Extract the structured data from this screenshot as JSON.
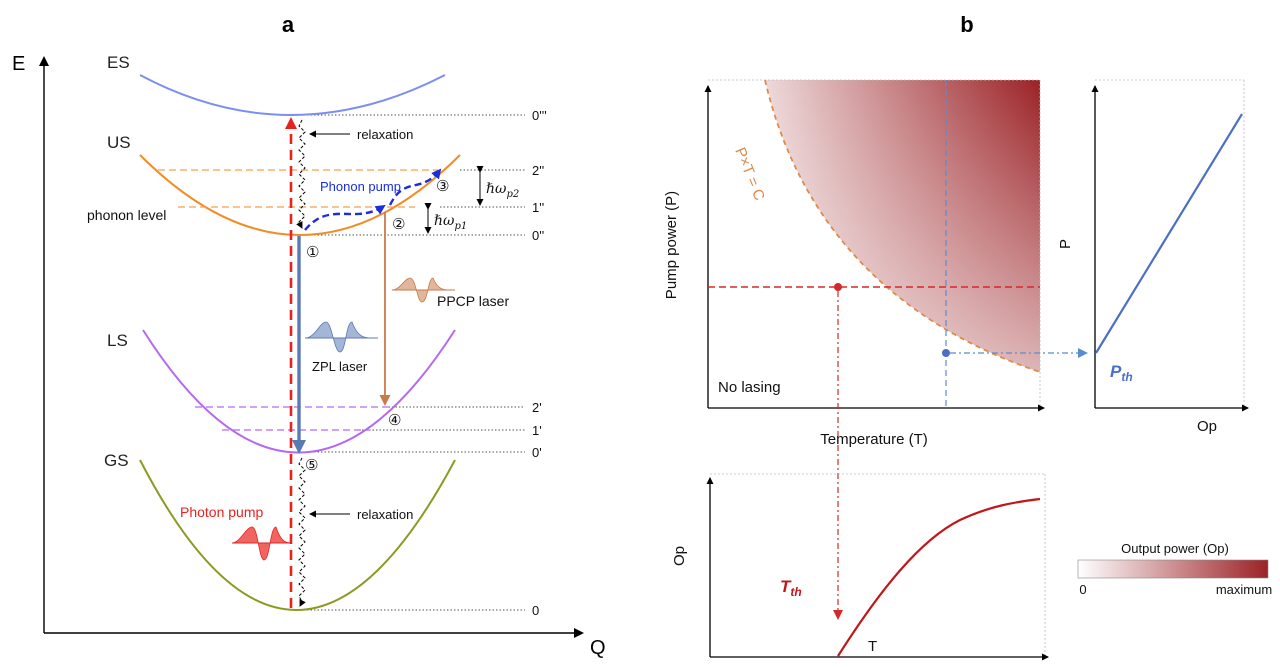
{
  "panel_a": {
    "label": "a",
    "axis_y": "E",
    "axis_x": "Q",
    "states": {
      "es": "ES",
      "us": "US",
      "ls": "LS",
      "gs": "GS"
    },
    "phonon_level": "phonon level",
    "levels": {
      "l0ppp": "0'''",
      "l2pp": "2''",
      "l1pp": "1''",
      "l0pp": "0''",
      "l2p": "2'",
      "l1p": "1'",
      "l0p": "0'",
      "l0": "0"
    },
    "relaxation_top": "relaxation",
    "relaxation_bottom": "relaxation",
    "phonon_pump": "Phonon pump",
    "photon_pump": "Photon pump",
    "zpl_laser": "ZPL laser",
    "ppcp_laser": "PPCP laser",
    "omega_p1": "ℏω",
    "omega_p1_sub": "p1",
    "omega_p2": "ℏω",
    "omega_p2_sub": "p2",
    "markers": [
      "①",
      "②",
      "③",
      "④",
      "⑤"
    ],
    "colors": {
      "es": "#7b8ff0",
      "us": "#f28c28",
      "ls": "#b469f0",
      "gs": "#8c9a22",
      "red": "#e8231f",
      "blue": "#1a2ee0",
      "zpl": "#5a7ab5",
      "ppcp": "#c97a4a"
    }
  },
  "panel_b": {
    "label": "b",
    "main_ylabel": "Pump power (P)",
    "main_xlabel": "Temperature (T)",
    "curve_label": "P×T = C",
    "no_lasing": "No lasing",
    "right_ylabel": "P",
    "right_xlabel": "Op",
    "p_th": "P",
    "p_th_sub": "th",
    "bottom_ylabel": "Op",
    "bottom_xlabel": "T",
    "t_th": "T",
    "t_th_sub": "th",
    "colorbar_title": "Output power (Op)",
    "colorbar_min": "0",
    "colorbar_max": "maximum",
    "colors": {
      "max": "#9b2226",
      "red_line": "#d62828",
      "blue_line": "#5b8bd0",
      "curve": "#e08a4a",
      "pth": "#4c6fc4"
    }
  }
}
